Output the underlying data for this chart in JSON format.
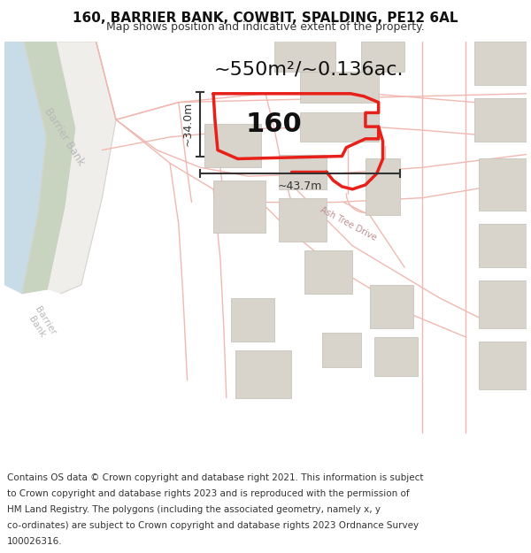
{
  "title": "160, BARRIER BANK, COWBIT, SPALDING, PE12 6AL",
  "subtitle": "Map shows position and indicative extent of the property.",
  "area_text": "~550m²/~0.136ac.",
  "label_160": "160",
  "dim_height": "~34.0m",
  "dim_width": "~43.7m",
  "footer_lines": [
    "Contains OS data © Crown copyright and database right 2021. This information is subject",
    "to Crown copyright and database rights 2023 and is reproduced with the permission of",
    "HM Land Registry. The polygons (including the associated geometry, namely x, y",
    "co-ordinates) are subject to Crown copyright and database rights 2023 Ordnance Survey",
    "100026316."
  ],
  "bg_color": "#f7f6f4",
  "road_line_color": "#f0b8b0",
  "highlight_color": "#e8201a",
  "building_fill": "#d8d4cc",
  "building_outline": "#c8c4bc",
  "water_color": "#c8dce8",
  "green_color": "#c8d4c0",
  "barrier_road_color": "#eeeeec",
  "dim_color": "#333333",
  "label_color": "#aaaaaa",
  "title_fontsize": 11,
  "subtitle_fontsize": 9,
  "area_fontsize": 16,
  "label_fontsize": 22,
  "footer_fontsize": 7.5
}
